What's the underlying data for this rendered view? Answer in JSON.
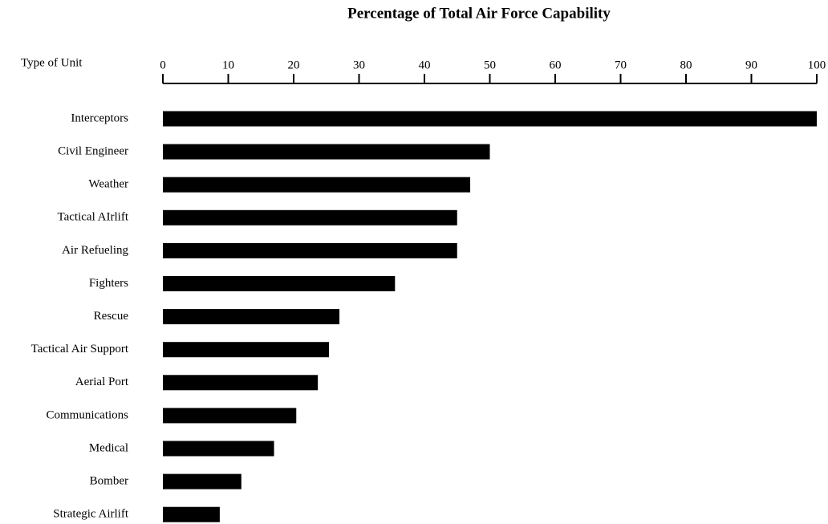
{
  "chart_data": {
    "type": "barh",
    "title": "Percentage of Total Air Force Capability",
    "y_label": "Type of Unit",
    "categories": [
      "Interceptors",
      "Civil Engineer",
      "Weather",
      "Tactical AIrlift",
      "Air Refueling",
      "Fighters",
      "Rescue",
      "Tactical Air Support",
      "Aerial Port",
      "Communications",
      "Medical",
      "Bomber",
      "Strategic Airlift"
    ],
    "values": [
      100,
      50,
      47,
      45,
      45,
      35.5,
      27,
      25.4,
      23.7,
      20.4,
      17,
      12,
      8.7
    ],
    "color": "#000000",
    "xlim": [
      0,
      100
    ],
    "xticks": [
      0,
      10,
      20,
      30,
      40,
      50,
      60,
      70,
      80,
      90,
      100
    ],
    "grid": false
  }
}
